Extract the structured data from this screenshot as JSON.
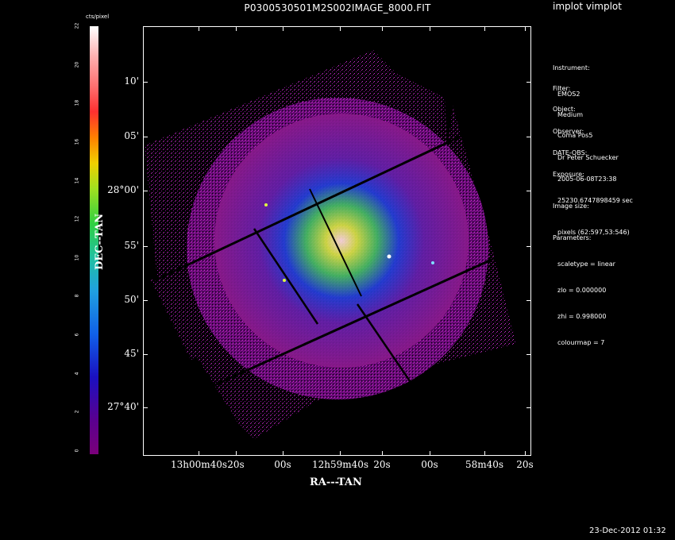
{
  "app_title": "implot vimplot",
  "image_title": "P0300530501M2S002IMAGE_8000.FIT",
  "colorbar": {
    "unit": "cts/pixel",
    "ticks": [
      "0",
      "2",
      "4",
      "6",
      "8",
      "10",
      "12",
      "14",
      "16",
      "18",
      "20",
      "22"
    ]
  },
  "axes": {
    "xlabel": "RA---TAN",
    "ylabel": "DEC--TAN",
    "x_ticks": [
      "13h00m40s",
      "20s",
      "00s",
      "12h59m40s",
      "20s",
      "00s",
      "58m40s",
      "20s"
    ],
    "y_ticks": [
      "10'",
      "05'",
      "28°00'",
      "55'",
      "50'",
      "45'",
      "27°40'"
    ]
  },
  "info": {
    "instrument_label": "Instrument:",
    "instrument": "EMOS2",
    "filter_label": "Filter:",
    "filter": "Medium",
    "object_label": "Object:",
    "object": "Coma Pos5",
    "observer_label": "Observer:",
    "observer": "Dr Peter Schuecker",
    "date_label": "DATE-OBS:",
    "date": "2005-06-08T23:38",
    "exposure_label": "Exposure:",
    "exposure": "25230.6747898459 sec",
    "image_size_label": "Image size:",
    "image_size": "pixels (62:597,53:546)",
    "parameters_label": "Parameters:",
    "scaletype": "scaletype = linear",
    "zlo": "zlo = 0.000000",
    "zhi": "zhi = 0.998000",
    "colourmap": "colourmap = 7"
  },
  "footer_timestamp": "23-Dec-2012 01:32",
  "colors": {
    "background": "#000000",
    "foreground": "#ffffff",
    "low_counts": "#7a007a",
    "high_counts": "#ffffff"
  }
}
